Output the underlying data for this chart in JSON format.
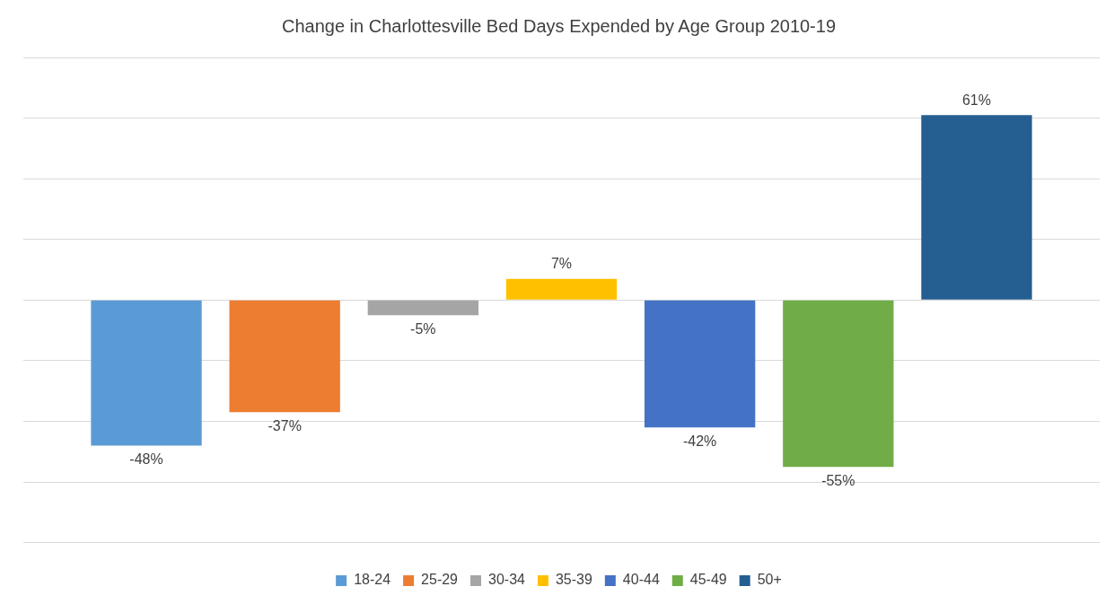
{
  "chart_data": {
    "type": "bar",
    "title": "Change in Charlottesville Bed Days Expended by Age Group 2010-19",
    "categories": [
      null
    ],
    "series": [
      {
        "name": "18-24",
        "color": "#5b9bd5",
        "values": [
          -48
        ],
        "value_labels": [
          "-48%"
        ]
      },
      {
        "name": "25-29",
        "color": "#ed7d31",
        "values": [
          -37
        ],
        "value_labels": [
          "-37%"
        ]
      },
      {
        "name": "30-34",
        "color": "#a5a5a5",
        "values": [
          -5
        ],
        "value_labels": [
          "-5%"
        ]
      },
      {
        "name": "35-39",
        "color": "#ffc000",
        "values": [
          7
        ],
        "value_labels": [
          "7%"
        ]
      },
      {
        "name": "40-44",
        "color": "#4472c4",
        "values": [
          -42
        ],
        "value_labels": [
          "-42%"
        ]
      },
      {
        "name": "45-49",
        "color": "#70ad47",
        "values": [
          -55
        ],
        "value_labels": [
          "-55%"
        ]
      },
      {
        "name": "50+",
        "color": "#255e91",
        "values": [
          61
        ],
        "value_labels": [
          "61%"
        ]
      }
    ],
    "ylim": [
      -80,
      80
    ],
    "yticks": [
      {
        "value": -80,
        "label": null
      },
      {
        "value": -60,
        "label": null
      },
      {
        "value": -40,
        "label": null
      },
      {
        "value": -20,
        "label": null
      },
      {
        "value": 0,
        "label": null
      },
      {
        "value": 20,
        "label": null
      },
      {
        "value": 40,
        "label": null
      },
      {
        "value": 60,
        "label": null
      },
      {
        "value": 80,
        "label": null
      }
    ],
    "grid": "y",
    "legend": "bottom"
  }
}
